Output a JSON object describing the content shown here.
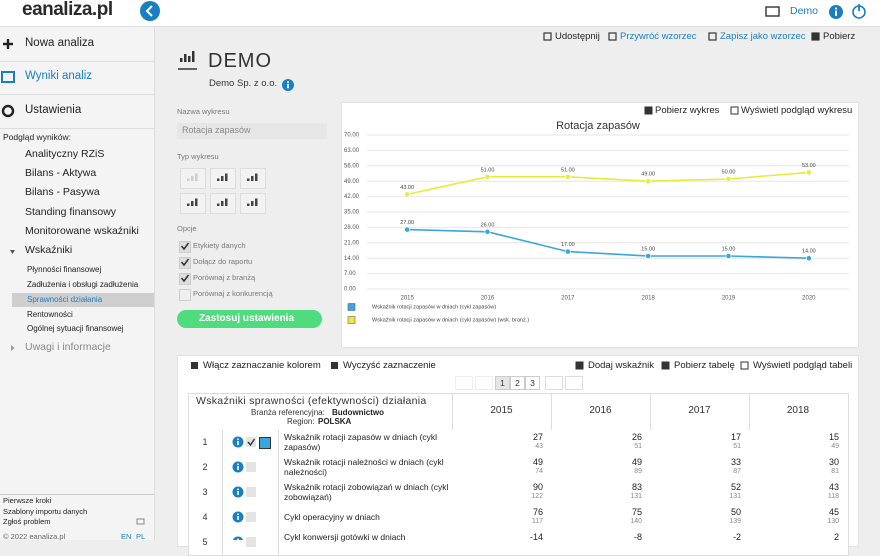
{
  "header": {
    "logo": "eanaliza.pl",
    "user": "Demo"
  },
  "sidebar": {
    "main": [
      "Nowa analiza",
      "Wyniki analiz",
      "Ustawienia"
    ],
    "section_label": "Podgląd wyników:",
    "items": [
      "Analityczny RZiS",
      "Bilans - Aktywa",
      "Bilans - Pasywa",
      "Standing finansowy",
      "Monitorowane wskaźniki",
      "Wskaźniki"
    ],
    "subitems": [
      "Płynności finansowej",
      "Zadłużenia i obsługi zadłużenia",
      "Sprawności działania",
      "Rentowności",
      "Ogólnej sytuacji finansowej"
    ],
    "more": "Uwagi i informacje",
    "footer_links": [
      "Pierwsze kroki",
      "Szablony importu danych",
      "Zgłoś problem"
    ],
    "copyright": "© 2022 eanaliza.pl",
    "langs": [
      "EN",
      "PL"
    ]
  },
  "toolbar": [
    "Udostępnij",
    "Przywróć wzorzec",
    "Zapisz jako wzorzec",
    "Pobierz"
  ],
  "page": {
    "title": "DEMO",
    "company": "Demo Sp. z o.o."
  },
  "form": {
    "name_label": "Nazwa wykresu",
    "name_value": "Rotacja zapasów",
    "type_label": "Typ wykresu",
    "options_label": "Opcje",
    "options": [
      "Etykiety danych",
      "Dołącz do raportu",
      "Porównaj z branżą",
      "Porównaj z konkurencją"
    ],
    "checked": [
      true,
      true,
      true,
      false
    ],
    "submit": "Zastosuj ustawienia"
  },
  "chart_actions": [
    "Pobierz wykres",
    "Wyświetl podgląd wykresu"
  ],
  "chart_data": {
    "type": "line",
    "title": "Rotacja zapasów",
    "categories": [
      "2015",
      "2016",
      "2017",
      "2018",
      "2019",
      "2020"
    ],
    "series": [
      {
        "name": "Wskaźnik rotacji zapasów w dniach (cykl zapasów)",
        "color": "#3aa6dd",
        "values": [
          27,
          26,
          17,
          15,
          15,
          14
        ],
        "value_labels": [
          "27.00",
          "26.00",
          "17.00",
          "15.00",
          "15.00",
          "14.00"
        ]
      },
      {
        "name": "Wskaźnik rotacji zapasów w dniach (cykl zapasów) (wsk. branż.)",
        "color": "#e9ea3a",
        "values": [
          43,
          51,
          51,
          49,
          50,
          53
        ],
        "value_labels": [
          "43.00",
          "51.00",
          "51.00",
          "49.00",
          "50.00",
          "53.00"
        ]
      }
    ],
    "ylim": [
      0,
      70
    ],
    "yticks": [
      {
        "value": 0,
        "label": "0.00"
      },
      {
        "value": 7,
        "label": "7.00"
      },
      {
        "value": 14,
        "label": "14.00"
      },
      {
        "value": 21,
        "label": "21.00"
      },
      {
        "value": 28,
        "label": "28.00"
      },
      {
        "value": 35,
        "label": "35.00"
      },
      {
        "value": 42,
        "label": "42.00"
      },
      {
        "value": 49,
        "label": "49.00"
      },
      {
        "value": 56,
        "label": "56.00"
      },
      {
        "value": 63,
        "label": "63.00"
      },
      {
        "value": 70,
        "label": "70.00"
      }
    ],
    "grid": true
  },
  "table_toolbar": {
    "left": [
      "Włącz zaznaczanie kolorem",
      "Wyczyść zaznaczenie"
    ],
    "right": [
      "Dodaj wskaźnik",
      "Pobierz tabelę",
      "Wyświetl podgląd tabeli"
    ]
  },
  "pagination": [
    1,
    2,
    3
  ],
  "table": {
    "title": "Wskaźniki sprawności (efektywności) działania",
    "industry_label": "Branża referencyjna:",
    "industry": "Budownictwo",
    "region_label": "Region:",
    "region": "POLSKA",
    "years": [
      2015,
      2016,
      2017,
      2018
    ],
    "rows": [
      {
        "no": 1,
        "name": "Wskaźnik rotacji zapasów w dniach (cykl zapasów)",
        "values": [
          27,
          26,
          17,
          15
        ],
        "industry_values": [
          43,
          51,
          51,
          49
        ]
      },
      {
        "no": 2,
        "name": "Wskaźnik rotacji należności w dniach (cykl należności)",
        "values": [
          49,
          49,
          33,
          30
        ],
        "industry_values": [
          74,
          89,
          87,
          81
        ]
      },
      {
        "no": 3,
        "name": "Wskaźnik rotacji zobowiązań w dniach (cykl zobowiązań)",
        "values": [
          90,
          83,
          52,
          43
        ],
        "industry_values": [
          122,
          131,
          131,
          118
        ]
      },
      {
        "no": 4,
        "name": "Cykl operacyjny w dniach",
        "values": [
          76,
          75,
          50,
          45
        ],
        "industry_values": [
          117,
          140,
          139,
          130
        ]
      },
      {
        "no": 5,
        "name": "Cykl konwersji gotówki w dniach",
        "values": [
          -14,
          -8,
          -2,
          2
        ]
      }
    ]
  }
}
